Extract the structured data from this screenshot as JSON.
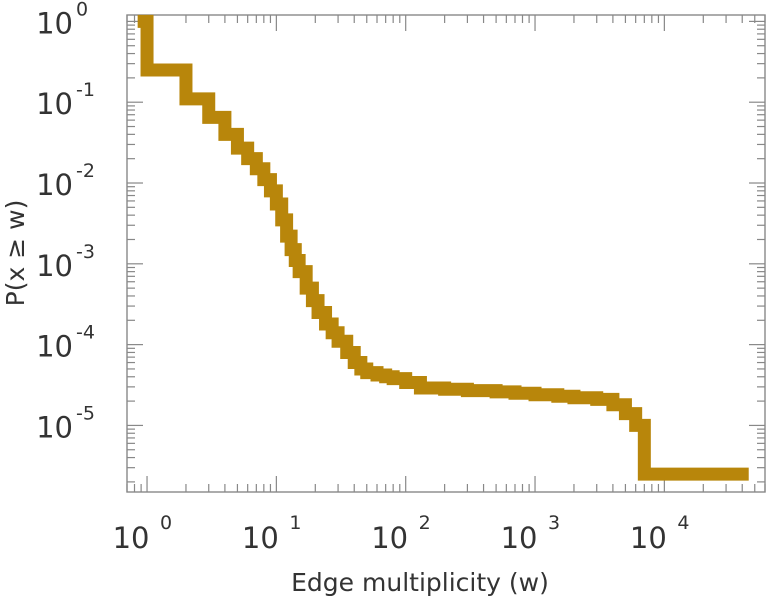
{
  "chart_data": {
    "type": "line",
    "step": true,
    "xlabel": "Edge multiplicity (w)",
    "ylabel": "P(x ≥ w)",
    "x_scale": "log",
    "y_scale": "log",
    "xlim": [
      0.7,
      60000
    ],
    "ylim": [
      1.5e-06,
      1.2
    ],
    "grid": false,
    "x_ticks": [
      {
        "base": "10",
        "exp": "0",
        "value": 1
      },
      {
        "base": "10",
        "exp": "1",
        "value": 10
      },
      {
        "base": "10",
        "exp": "2",
        "value": 100
      },
      {
        "base": "10",
        "exp": "3",
        "value": 1000
      },
      {
        "base": "10",
        "exp": "4",
        "value": 10000
      }
    ],
    "y_ticks": [
      {
        "base": "10",
        "exp": "0",
        "value": 1
      },
      {
        "base": "10",
        "exp": "-1",
        "value": 0.1
      },
      {
        "base": "10",
        "exp": "-2",
        "value": 0.01
      },
      {
        "base": "10",
        "exp": "-3",
        "value": 0.001
      },
      {
        "base": "10",
        "exp": "-4",
        "value": 0.0001
      },
      {
        "base": "10",
        "exp": "-5",
        "value": 1e-05
      }
    ],
    "series": [
      {
        "color": "#b8860b",
        "x": [
          0.95,
          1,
          2,
          3,
          4,
          5,
          6,
          7,
          8,
          9,
          10,
          11,
          12,
          13,
          14,
          15,
          17,
          19,
          21,
          24,
          27,
          30,
          35,
          40,
          45,
          50,
          60,
          70,
          80,
          100,
          130,
          200,
          300,
          500,
          700,
          1000,
          1500,
          2000,
          3000,
          4000,
          5000,
          6000,
          7000,
          40000
        ],
        "y": [
          1,
          0.25,
          0.11,
          0.065,
          0.04,
          0.027,
          0.02,
          0.015,
          0.011,
          0.008,
          0.0055,
          0.0035,
          0.0022,
          0.0015,
          0.0011,
          0.0008,
          0.0005,
          0.00035,
          0.00025,
          0.00018,
          0.00014,
          0.00011,
          8e-05,
          6e-05,
          5e-05,
          4.5e-05,
          4.2e-05,
          4e-05,
          3.8e-05,
          3.4e-05,
          2.9e-05,
          2.8e-05,
          2.7e-05,
          2.6e-05,
          2.5e-05,
          2.4e-05,
          2.3e-05,
          2.2e-05,
          2.1e-05,
          1.8e-05,
          1.4e-05,
          1e-05,
          2.5e-06,
          2.5e-06
        ]
      }
    ]
  }
}
